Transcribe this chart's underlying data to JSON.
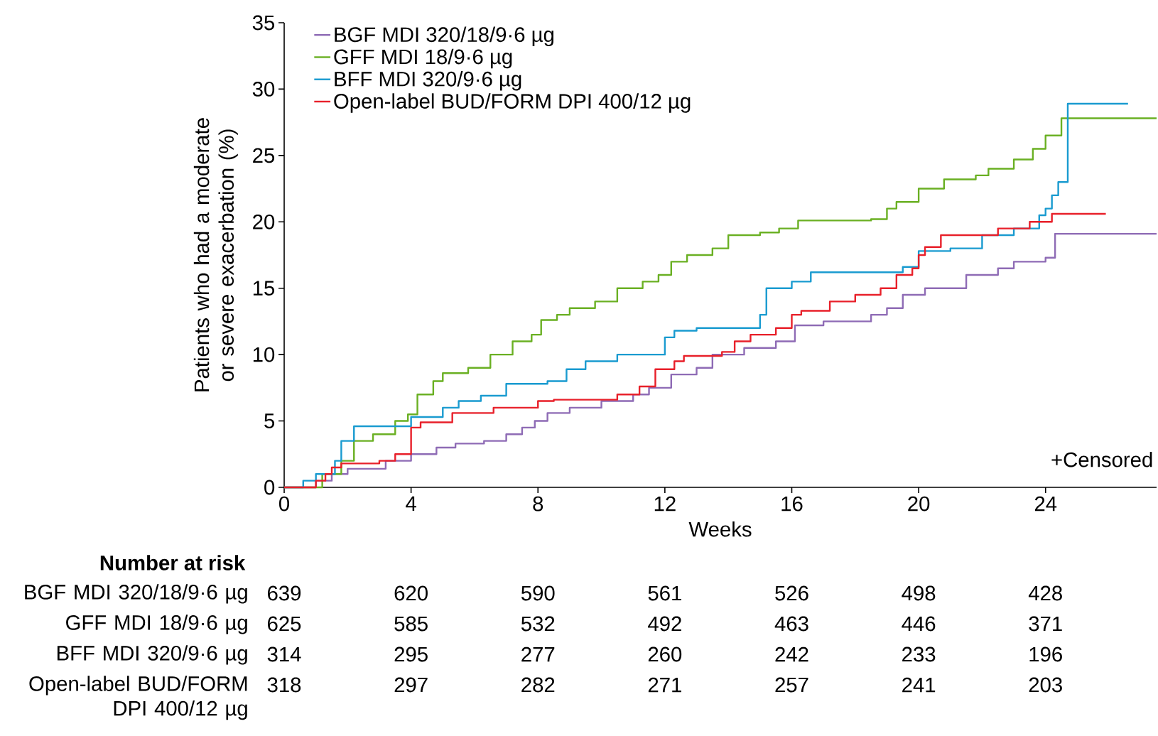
{
  "chart_data": {
    "type": "step",
    "xlabel": "Weeks",
    "ylabel": "Patients who had a moderate or severe exacerbation (%)",
    "xlim": [
      0,
      27.5
    ],
    "ylim": [
      0,
      35
    ],
    "xticks": [
      0,
      4,
      8,
      12,
      16,
      20,
      24
    ],
    "yticks": [
      0,
      5,
      10,
      15,
      20,
      25,
      30,
      35
    ],
    "legend": "top left",
    "series": [
      {
        "name": "BGF MDI 320/18/9·6 µg",
        "color": "#8e6bb5",
        "x": [
          0,
          1.0,
          1.5,
          2.0,
          3.2,
          4.0,
          4.8,
          5.4,
          6.3,
          7.0,
          7.5,
          7.9,
          8.3,
          9.0,
          10.0,
          11.0,
          11.5,
          12.2,
          13.0,
          13.5,
          14.5,
          15.5,
          16.1,
          17.0,
          18.5,
          19.0,
          19.5,
          20.2,
          21.5,
          22.5,
          23.0,
          24.0,
          24.3,
          27.5
        ],
        "values": [
          0,
          0.5,
          1.0,
          1.4,
          2.0,
          2.5,
          3.0,
          3.3,
          3.5,
          4.0,
          4.5,
          5.0,
          5.6,
          6.0,
          6.5,
          7.0,
          7.5,
          8.5,
          9.0,
          10.0,
          10.5,
          11.0,
          12.2,
          12.5,
          13.0,
          13.5,
          14.5,
          15.0,
          16.0,
          16.5,
          17.0,
          17.3,
          19.1,
          19.1
        ]
      },
      {
        "name": "GFF MDI 18/9·6 µg",
        "color": "#6ab023",
        "x": [
          0,
          0.9,
          1.2,
          1.8,
          2.2,
          2.8,
          3.5,
          3.9,
          4.2,
          4.7,
          5.0,
          5.8,
          6.5,
          7.2,
          7.8,
          8.1,
          8.6,
          9.0,
          9.8,
          10.5,
          11.3,
          11.8,
          12.2,
          12.7,
          13.5,
          14.0,
          15.0,
          15.6,
          16.2,
          18.5,
          19.0,
          19.3,
          20.0,
          20.8,
          21.8,
          22.2,
          23.0,
          23.6,
          24.0,
          24.5,
          27.5
        ],
        "values": [
          0,
          0,
          1.0,
          2.0,
          3.5,
          4.0,
          5.0,
          5.5,
          7.0,
          8.0,
          8.6,
          9.0,
          10.0,
          11.0,
          11.5,
          12.6,
          13.0,
          13.5,
          14.0,
          15.0,
          15.5,
          16.0,
          17.0,
          17.5,
          18.0,
          19.0,
          19.2,
          19.5,
          20.1,
          20.2,
          21.0,
          21.5,
          22.5,
          23.2,
          23.5,
          24.0,
          24.7,
          25.5,
          26.5,
          27.8,
          27.8
        ]
      },
      {
        "name": "BFF MDI 320/9·6 µg",
        "color": "#1a9bd0",
        "x": [
          0,
          0.6,
          1.0,
          1.6,
          1.8,
          2.2,
          4.0,
          5.0,
          5.5,
          6.2,
          7.0,
          8.3,
          8.9,
          9.5,
          10.5,
          12.0,
          12.3,
          13.0,
          15.0,
          15.2,
          16.0,
          16.6,
          19.5,
          20.0,
          21.0,
          22.0,
          23.0,
          23.8,
          24.0,
          24.2,
          24.4,
          24.7,
          26.6
        ],
        "values": [
          0,
          0.5,
          1.0,
          2.0,
          3.5,
          4.6,
          5.3,
          6.0,
          6.5,
          6.9,
          7.8,
          8.0,
          8.9,
          9.5,
          10.0,
          11.3,
          11.8,
          12.0,
          13.0,
          15.0,
          15.5,
          16.2,
          16.6,
          17.8,
          18.0,
          19.0,
          19.5,
          20.5,
          21.0,
          22.0,
          23.0,
          28.9,
          28.9
        ]
      },
      {
        "name": "Open-label BUD/FORM DPI 400/12 µg",
        "color": "#e8202a",
        "x": [
          0,
          1.0,
          1.3,
          1.5,
          1.8,
          3.0,
          3.5,
          4.0,
          4.3,
          5.3,
          6.6,
          8.0,
          8.5,
          10.5,
          11.2,
          11.7,
          12.3,
          12.6,
          13.8,
          14.2,
          14.7,
          15.5,
          16.0,
          16.3,
          17.2,
          18.0,
          18.8,
          19.3,
          19.8,
          20.0,
          20.2,
          20.7,
          22.5,
          23.5,
          24.2,
          25.9
        ],
        "values": [
          0,
          0.5,
          1.0,
          1.5,
          1.8,
          2.0,
          2.5,
          4.5,
          4.9,
          5.6,
          6.0,
          6.5,
          6.6,
          7.0,
          7.6,
          8.9,
          9.5,
          9.9,
          10.2,
          11.0,
          11.5,
          12.0,
          13.0,
          13.3,
          14.0,
          14.5,
          15.0,
          16.0,
          16.5,
          17.5,
          18.1,
          19.0,
          19.5,
          20.0,
          20.6,
          20.6
        ]
      }
    ],
    "annotations": [
      "+Censored",
      "Number at risk",
      "BGF MDI 320/18/9·6 µg",
      "639",
      "620",
      "590",
      "561",
      "526",
      "498",
      "428",
      "GFF MDI 18/9·6 µg",
      "625",
      "585",
      "532",
      "492",
      "463",
      "446",
      "371",
      "BFF MDI 320/9·6 µg",
      "314",
      "295",
      "277",
      "260",
      "242",
      "233",
      "196",
      "Open-label BUD/FORM DPI 400/12 µg",
      "318",
      "297",
      "282",
      "271",
      "257",
      "241",
      "203"
    ]
  }
}
